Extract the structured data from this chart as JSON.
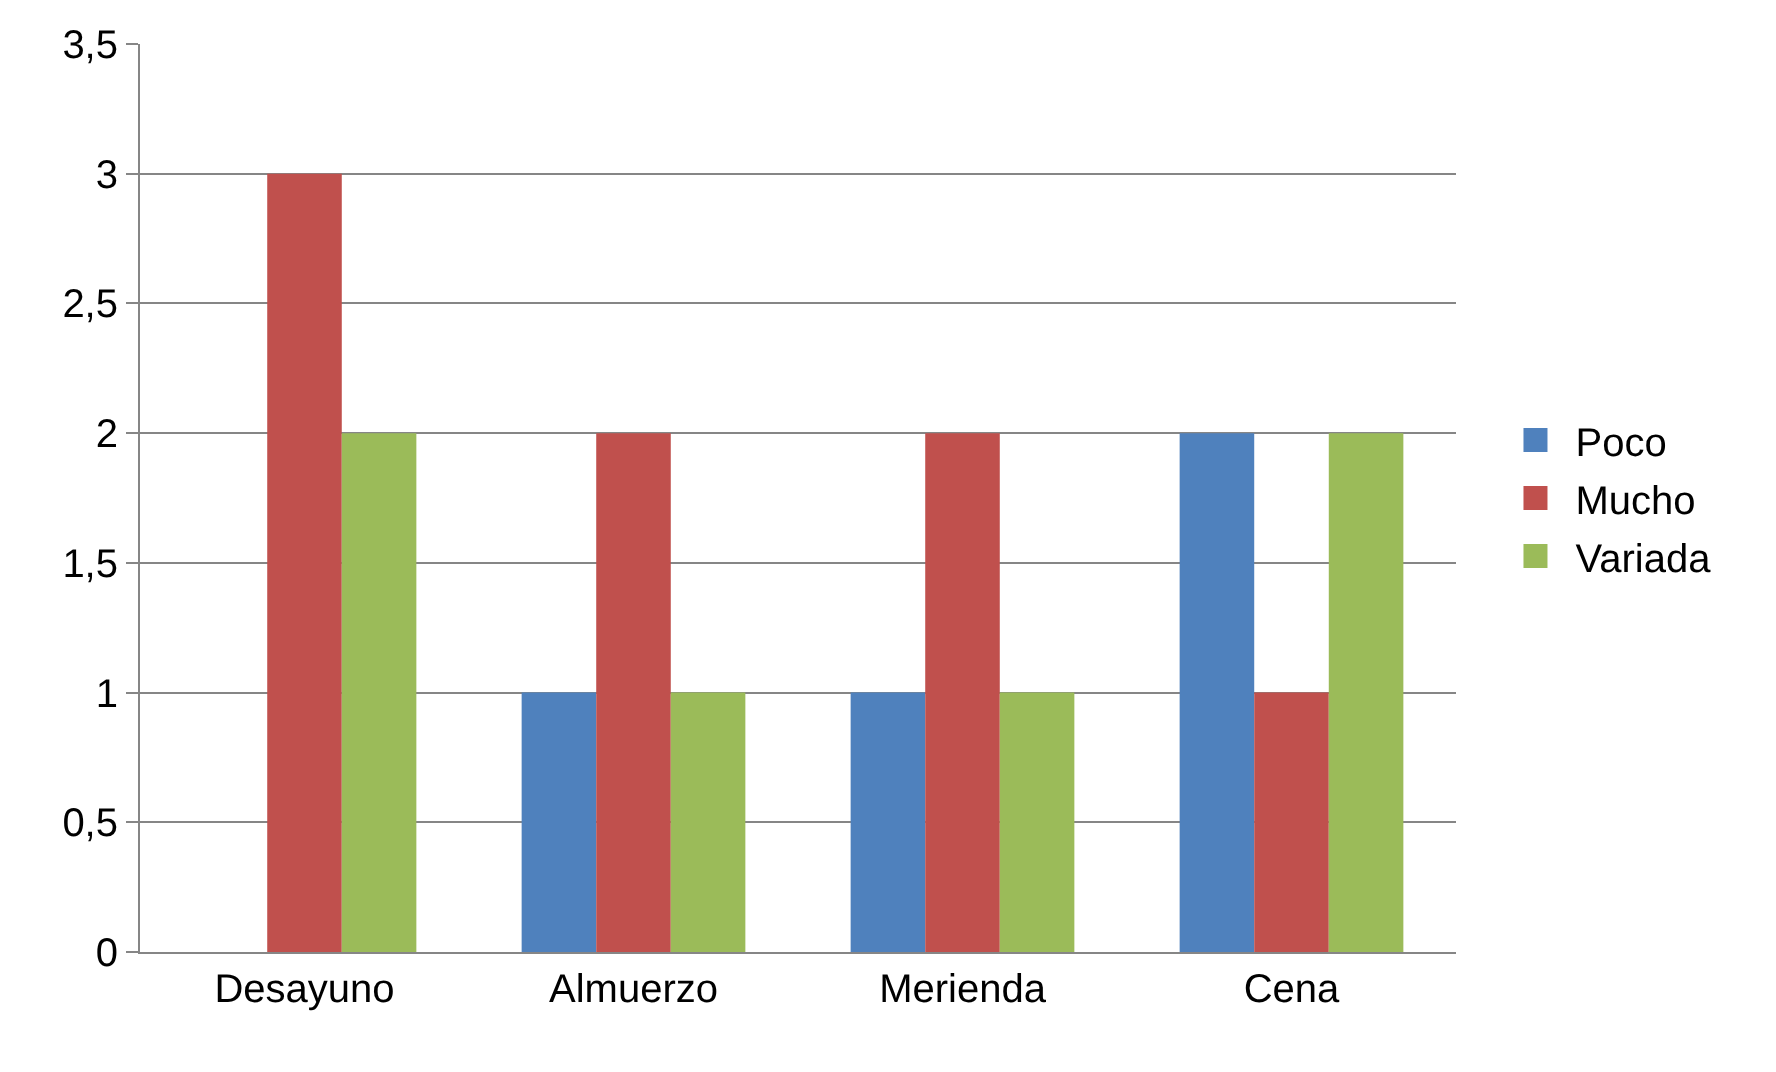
{
  "chart_data": {
    "type": "bar",
    "categories": [
      "Desayuno",
      "Almuerzo",
      "Merienda",
      "Cena"
    ],
    "series": [
      {
        "name": "Poco",
        "color": "#4f81bd",
        "values": [
          0,
          1,
          1,
          2
        ]
      },
      {
        "name": "Mucho",
        "color": "#c0504d",
        "values": [
          3,
          2,
          2,
          1
        ]
      },
      {
        "name": "Variada",
        "color": "#9bbb59",
        "values": [
          2,
          1,
          1,
          2
        ]
      }
    ],
    "ylim": [
      0,
      3.5
    ],
    "yticks": [
      0,
      {
        "value": 0.5,
        "label": "0,5"
      },
      1,
      {
        "value": 1.5,
        "label": "1,5"
      },
      2,
      {
        "value": 2.5,
        "label": "2,5"
      },
      3,
      {
        "value": 3.5,
        "label": "3,5"
      }
    ],
    "grid": "y",
    "legend": "right"
  }
}
